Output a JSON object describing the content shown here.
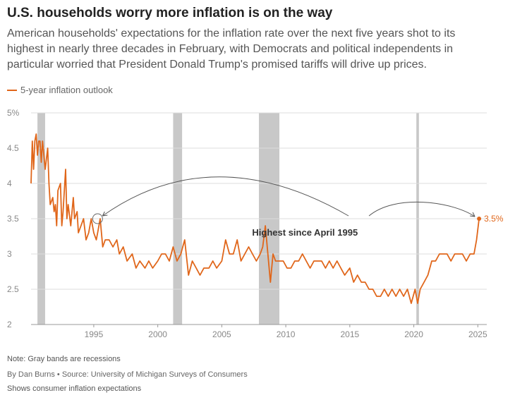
{
  "header": {
    "title": "U.S. households worry more inflation is on the way",
    "subtitle": "American households' expectations for the inflation rate over the next five years shot to its highest in nearly three decades in February, with Democrats and political independents in particular worried that President Donald Trump's promised tariffs will drive up prices."
  },
  "footer": {
    "note": "Note: Gray bands are recessions",
    "byline": "By Dan Burns • Source: University of Michigan Surveys of Consumers",
    "alt": "Shows consumer inflation expectations"
  },
  "colors": {
    "series": "#e0661a",
    "recession": "#c8c8c8",
    "grid": "#dddddd",
    "annotation": "#555555",
    "circle": "#666666"
  },
  "chart_data": {
    "type": "line",
    "title": "U.S. households worry more inflation is on the way",
    "xlabel": "",
    "ylabel": "",
    "xlim": [
      1990.1,
      2025.7
    ],
    "ylim": [
      2,
      5
    ],
    "yticks": [
      2,
      2.5,
      3,
      3.5,
      4,
      4.5,
      5
    ],
    "ytick_labels": [
      "2",
      "2.5",
      "3",
      "3.5",
      "4",
      "4.5",
      "5%"
    ],
    "xticks": [
      1995,
      2000,
      2005,
      2010,
      2015,
      2020,
      2025
    ],
    "xtick_labels": [
      "1995",
      "2000",
      "2005",
      "2010",
      "2015",
      "2020",
      "2025"
    ],
    "grid": true,
    "legend": "top-left",
    "recessions": [
      [
        1990.6,
        1991.2
      ],
      [
        2001.2,
        2001.9
      ],
      [
        2007.9,
        2009.5
      ],
      [
        2020.2,
        2020.4
      ]
    ],
    "series": [
      {
        "name": "5-year inflation outlook",
        "x": [
          1990.1,
          1990.2,
          1990.3,
          1990.4,
          1990.5,
          1990.6,
          1990.7,
          1990.8,
          1990.9,
          1991.0,
          1991.2,
          1991.4,
          1991.5,
          1991.6,
          1991.8,
          1991.9,
          1992.0,
          1992.1,
          1992.2,
          1992.4,
          1992.5,
          1992.6,
          1992.8,
          1992.9,
          1993.0,
          1993.2,
          1993.4,
          1993.5,
          1993.7,
          1993.8,
          1994.0,
          1994.2,
          1994.4,
          1994.6,
          1994.8,
          1995.0,
          1995.2,
          1995.3,
          1995.5,
          1995.7,
          1995.9,
          1996.2,
          1996.5,
          1996.8,
          1997.0,
          1997.3,
          1997.6,
          1998.0,
          1998.3,
          1998.6,
          1999.0,
          1999.3,
          1999.6,
          2000.0,
          2000.3,
          2000.6,
          2000.9,
          2001.2,
          2001.5,
          2001.8,
          2002.1,
          2002.4,
          2002.7,
          2003.0,
          2003.3,
          2003.6,
          2004.0,
          2004.3,
          2004.6,
          2005.0,
          2005.3,
          2005.6,
          2005.9,
          2006.2,
          2006.5,
          2006.8,
          2007.1,
          2007.4,
          2007.7,
          2008.0,
          2008.2,
          2008.4,
          2008.6,
          2008.8,
          2009.0,
          2009.2,
          2009.5,
          2009.8,
          2010.1,
          2010.4,
          2010.7,
          2011.0,
          2011.3,
          2011.6,
          2011.9,
          2012.2,
          2012.5,
          2012.8,
          2013.1,
          2013.4,
          2013.7,
          2014.0,
          2014.3,
          2014.6,
          2015.0,
          2015.3,
          2015.6,
          2015.9,
          2016.2,
          2016.5,
          2016.8,
          2017.1,
          2017.4,
          2017.7,
          2018.0,
          2018.3,
          2018.6,
          2018.9,
          2019.2,
          2019.5,
          2019.8,
          2020.1,
          2020.3,
          2020.5,
          2020.8,
          2021.1,
          2021.4,
          2021.7,
          2022.0,
          2022.3,
          2022.6,
          2022.9,
          2023.2,
          2023.5,
          2023.8,
          2024.1,
          2024.4,
          2024.7,
          2024.9,
          2025.1
        ],
        "values": [
          4.0,
          4.6,
          4.2,
          4.6,
          4.7,
          4.4,
          4.6,
          4.6,
          4.3,
          4.6,
          4.2,
          4.5,
          4.0,
          3.7,
          3.8,
          3.6,
          3.7,
          3.4,
          3.9,
          4.0,
          3.4,
          3.6,
          4.2,
          3.5,
          3.7,
          3.4,
          3.8,
          3.5,
          3.6,
          3.3,
          3.4,
          3.5,
          3.2,
          3.3,
          3.5,
          3.3,
          3.2,
          3.3,
          3.5,
          3.1,
          3.2,
          3.2,
          3.1,
          3.2,
          3.0,
          3.1,
          2.9,
          3.0,
          2.8,
          2.9,
          2.8,
          2.9,
          2.8,
          2.9,
          3.0,
          3.0,
          2.9,
          3.1,
          2.9,
          3.0,
          3.2,
          2.7,
          2.9,
          2.8,
          2.7,
          2.8,
          2.8,
          2.9,
          2.8,
          2.9,
          3.2,
          3.0,
          3.0,
          3.2,
          2.9,
          3.0,
          3.1,
          3.0,
          2.9,
          3.0,
          3.1,
          3.4,
          3.0,
          2.6,
          3.0,
          2.9,
          2.9,
          2.9,
          2.8,
          2.8,
          2.9,
          2.9,
          3.0,
          2.9,
          2.8,
          2.9,
          2.9,
          2.9,
          2.8,
          2.9,
          2.8,
          2.9,
          2.8,
          2.7,
          2.8,
          2.6,
          2.7,
          2.6,
          2.6,
          2.5,
          2.5,
          2.4,
          2.4,
          2.5,
          2.4,
          2.5,
          2.4,
          2.5,
          2.4,
          2.5,
          2.3,
          2.5,
          2.3,
          2.5,
          2.6,
          2.7,
          2.9,
          2.9,
          3.0,
          3.0,
          3.0,
          2.9,
          3.0,
          3.0,
          3.0,
          2.9,
          3.0,
          3.0,
          3.2,
          3.5
        ]
      }
    ],
    "annotations": [
      {
        "text": "Highest since April 1995",
        "x": [
          1995.3,
          2025.1
        ],
        "y": 3.5
      },
      {
        "text": "3.5%",
        "x": 2025.1,
        "y": 3.5
      }
    ]
  }
}
